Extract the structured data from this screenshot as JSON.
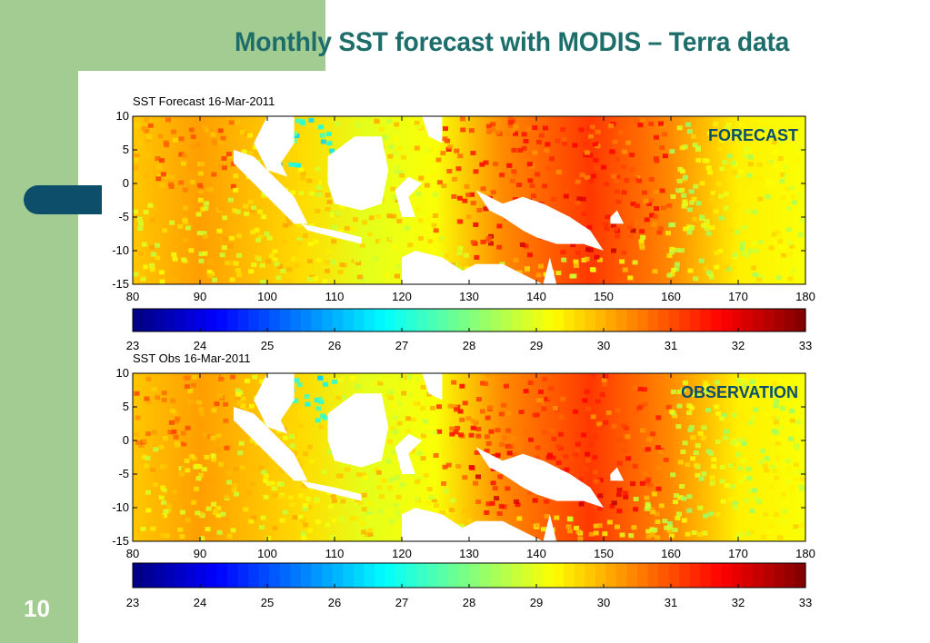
{
  "slide": {
    "title": "Monthly SST forecast with MODIS – Terra data",
    "page_number": "10",
    "colors": {
      "green_band": "#a3cc93",
      "tab": "#0d4f6a",
      "title": "#1d6e6b",
      "label": "#0d4f6a"
    }
  },
  "chart_data": [
    {
      "type": "heatmap",
      "title": "SST Forecast 16-Mar-2011",
      "label": "FORECAST",
      "x_ticks": [
        80,
        90,
        100,
        110,
        120,
        130,
        140,
        150,
        160,
        170,
        180
      ],
      "y_ticks": [
        10,
        5,
        0,
        -5,
        -10,
        -15
      ],
      "xlim": [
        80,
        180
      ],
      "ylim": [
        -15,
        10
      ],
      "colorbar": {
        "ticks": [
          23,
          24,
          25,
          26,
          27,
          28,
          29,
          30,
          31,
          32,
          33
        ],
        "range": [
          23,
          33
        ],
        "colormap": "jet"
      }
    },
    {
      "type": "heatmap",
      "title": "SST Obs 16-Mar-2011",
      "label": "OBSERVATION",
      "x_ticks": [
        80,
        90,
        100,
        110,
        120,
        130,
        140,
        150,
        160,
        170,
        180
      ],
      "y_ticks": [
        10,
        5,
        0,
        -5,
        -10,
        -15
      ],
      "xlim": [
        80,
        180
      ],
      "ylim": [
        -15,
        10
      ],
      "colorbar": {
        "ticks": [
          23,
          24,
          25,
          26,
          27,
          28,
          29,
          30,
          31,
          32,
          33
        ],
        "range": [
          23,
          33
        ],
        "colormap": "jet"
      }
    }
  ]
}
